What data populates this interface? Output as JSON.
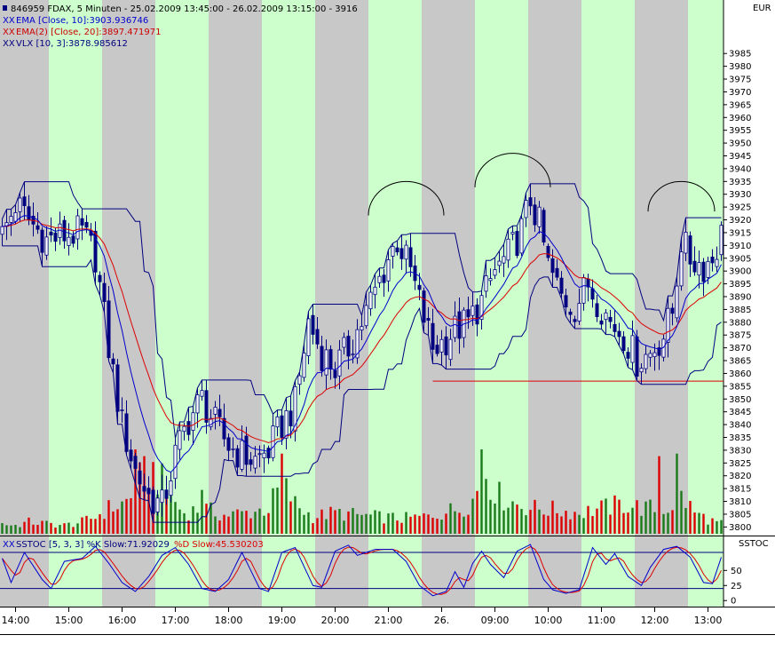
{
  "chart_data": {
    "type": "candlestick",
    "currency_label": "EUR",
    "header_lines": [
      {
        "prefix": "",
        "text": "846959  FDAX, 5 Minuten - 25.02.2009 13:45:00 - 26.02.2009 13:15:00 - 3916",
        "color": "#000000"
      },
      {
        "prefix": "XX",
        "text": "EMA [Close, 10]:3903.936746",
        "color": "#0000cc"
      },
      {
        "prefix": "XX",
        "text": "EMA(2) [Close, 20]:3897.471971",
        "color": "#cc0000"
      },
      {
        "prefix": "XX",
        "text": "VLX [10, 3]:3878.985612",
        "color": "#000080"
      }
    ],
    "price_axis": {
      "ylim": [
        3797,
        4000
      ],
      "ticks": [
        3800,
        3805,
        3810,
        3815,
        3820,
        3825,
        3830,
        3835,
        3840,
        3845,
        3850,
        3855,
        3860,
        3865,
        3870,
        3875,
        3880,
        3885,
        3890,
        3895,
        3900,
        3905,
        3910,
        3915,
        3920,
        3925,
        3930,
        3935,
        3940,
        3945,
        3950,
        3955,
        3960,
        3965,
        3970,
        3975,
        3980,
        3985
      ]
    },
    "time_axis": {
      "labels": [
        "14:00",
        "15:00",
        "16:00",
        "17:00",
        "18:00",
        "19:00",
        "20:00",
        "21:00",
        "26.",
        "09:00",
        "10:00",
        "11:00",
        "12:00",
        "13:00"
      ],
      "label_bar_index": [
        3,
        15,
        27,
        39,
        51,
        63,
        75,
        87,
        99,
        111,
        123,
        135,
        147,
        159
      ]
    },
    "bar_count": 163,
    "ohlc_knots": [
      [
        0,
        3914
      ],
      [
        3,
        3926
      ],
      [
        6,
        3920
      ],
      [
        10,
        3912
      ],
      [
        14,
        3914
      ],
      [
        18,
        3915
      ],
      [
        21,
        3906
      ],
      [
        24,
        3870
      ],
      [
        27,
        3840
      ],
      [
        30,
        3822
      ],
      [
        33,
        3812
      ],
      [
        36,
        3808
      ],
      [
        39,
        3828
      ],
      [
        42,
        3842
      ],
      [
        45,
        3850
      ],
      [
        48,
        3840
      ],
      [
        51,
        3832
      ],
      [
        54,
        3828
      ],
      [
        57,
        3826
      ],
      [
        60,
        3830
      ],
      [
        63,
        3840
      ],
      [
        66,
        3848
      ],
      [
        69,
        3880
      ],
      [
        72,
        3868
      ],
      [
        75,
        3862
      ],
      [
        78,
        3870
      ],
      [
        81,
        3880
      ],
      [
        84,
        3892
      ],
      [
        87,
        3905
      ],
      [
        89,
        3912
      ],
      [
        92,
        3900
      ],
      [
        95,
        3882
      ],
      [
        97,
        3870
      ],
      [
        99,
        3872
      ],
      [
        102,
        3877
      ],
      [
        105,
        3880
      ],
      [
        108,
        3888
      ],
      [
        111,
        3900
      ],
      [
        114,
        3906
      ],
      [
        117,
        3916
      ],
      [
        119,
        3928
      ],
      [
        121,
        3918
      ],
      [
        123,
        3902
      ],
      [
        126,
        3890
      ],
      [
        129,
        3886
      ],
      [
        132,
        3895
      ],
      [
        135,
        3886
      ],
      [
        137,
        3880
      ],
      [
        140,
        3875
      ],
      [
        143,
        3865
      ],
      [
        146,
        3868
      ],
      [
        149,
        3875
      ],
      [
        151,
        3884
      ],
      [
        153,
        3912
      ],
      [
        155,
        3905
      ],
      [
        158,
        3902
      ],
      [
        160,
        3905
      ],
      [
        162,
        3914
      ]
    ],
    "support_line": {
      "price": 3857,
      "from_bar": 97,
      "to_bar": 162
    },
    "arcs": [
      {
        "center_bar": 91,
        "top_price": 3935,
        "width_bars": 17
      },
      {
        "center_bar": 115,
        "top_price": 3946,
        "width_bars": 17
      },
      {
        "center_bar": 153,
        "top_price": 3935,
        "width_bars": 15
      }
    ],
    "colors": {
      "ema10": "#0000cc",
      "ema20": "#dd0000",
      "vlx": "#000080",
      "candle": "#000080",
      "volume_up": "#1a7a1a",
      "volume_down": "#dd0000",
      "grey_band": "#c8c8c8",
      "green_band": "#ccffcc"
    },
    "stochastic": {
      "legend_prefix": "XX",
      "legend_k": "SSTOC [5, 3, 3] %K Slow:71.92029",
      "legend_d": "%D Slow:45.530203",
      "panel_title": "SSTOC",
      "ticks": [
        0,
        25,
        50
      ],
      "levels": [
        80,
        20
      ],
      "ylim": [
        -10,
        105
      ],
      "k_knots": [
        [
          0,
          70
        ],
        [
          2,
          30
        ],
        [
          5,
          80
        ],
        [
          9,
          35
        ],
        [
          11,
          20
        ],
        [
          14,
          65
        ],
        [
          18,
          70
        ],
        [
          21,
          90
        ],
        [
          24,
          62
        ],
        [
          27,
          30
        ],
        [
          30,
          15
        ],
        [
          33,
          40
        ],
        [
          36,
          75
        ],
        [
          39,
          88
        ],
        [
          42,
          60
        ],
        [
          45,
          20
        ],
        [
          48,
          15
        ],
        [
          51,
          35
        ],
        [
          54,
          80
        ],
        [
          58,
          20
        ],
        [
          60,
          15
        ],
        [
          63,
          80
        ],
        [
          66,
          88
        ],
        [
          70,
          25
        ],
        [
          72,
          22
        ],
        [
          75,
          82
        ],
        [
          78,
          92
        ],
        [
          80,
          75
        ],
        [
          84,
          85
        ],
        [
          88,
          85
        ],
        [
          91,
          65
        ],
        [
          94,
          25
        ],
        [
          97,
          8
        ],
        [
          100,
          15
        ],
        [
          102,
          48
        ],
        [
          104,
          22
        ],
        [
          106,
          62
        ],
        [
          108,
          82
        ],
        [
          110,
          60
        ],
        [
          113,
          38
        ],
        [
          116,
          82
        ],
        [
          119,
          93
        ],
        [
          122,
          35
        ],
        [
          124,
          18
        ],
        [
          127,
          12
        ],
        [
          130,
          18
        ],
        [
          133,
          88
        ],
        [
          136,
          60
        ],
        [
          138,
          78
        ],
        [
          141,
          40
        ],
        [
          144,
          25
        ],
        [
          146,
          55
        ],
        [
          149,
          85
        ],
        [
          152,
          90
        ],
        [
          155,
          72
        ],
        [
          158,
          30
        ],
        [
          160,
          28
        ],
        [
          162,
          72
        ]
      ]
    },
    "volume": {
      "max": 100,
      "knots": [
        [
          0,
          12
        ],
        [
          3,
          10
        ],
        [
          6,
          14
        ],
        [
          10,
          12
        ],
        [
          14,
          10
        ],
        [
          18,
          14
        ],
        [
          21,
          20
        ],
        [
          24,
          30
        ],
        [
          27,
          35
        ],
        [
          30,
          45
        ],
        [
          32,
          80
        ],
        [
          35,
          70
        ],
        [
          38,
          40
        ],
        [
          41,
          25
        ],
        [
          45,
          30
        ],
        [
          50,
          22
        ],
        [
          55,
          25
        ],
        [
          60,
          30
        ],
        [
          63,
          60
        ],
        [
          66,
          35
        ],
        [
          70,
          20
        ],
        [
          75,
          25
        ],
        [
          80,
          22
        ],
        [
          85,
          20
        ],
        [
          90,
          18
        ],
        [
          95,
          20
        ],
        [
          99,
          25
        ],
        [
          103,
          30
        ],
        [
          106,
          40
        ],
        [
          109,
          70
        ],
        [
          112,
          45
        ],
        [
          116,
          35
        ],
        [
          120,
          30
        ],
        [
          125,
          28
        ],
        [
          130,
          25
        ],
        [
          135,
          30
        ],
        [
          140,
          35
        ],
        [
          145,
          30
        ],
        [
          150,
          30
        ],
        [
          153,
          45
        ],
        [
          156,
          25
        ],
        [
          160,
          15
        ],
        [
          162,
          12
        ]
      ],
      "spikes": {
        "30": 100,
        "32": 92,
        "38": 60,
        "45": 52,
        "63": 95,
        "108": 100,
        "109": 65,
        "148": 92,
        "152": 95
      }
    }
  }
}
